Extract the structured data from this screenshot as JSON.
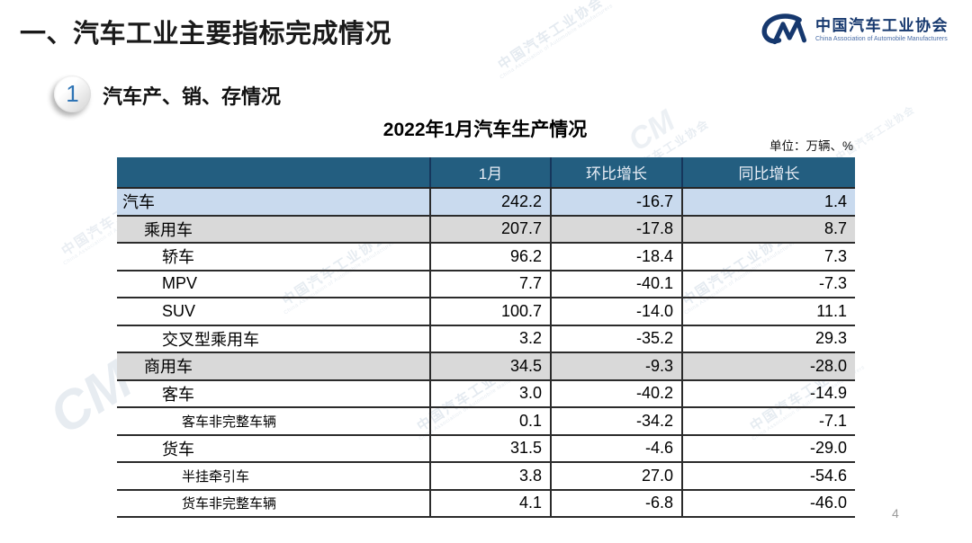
{
  "slide": {
    "header": {
      "title": "一、汽车工业主要指标完成情况"
    },
    "logo": {
      "monogram": "CM",
      "name_cn": "中国汽车工业协会",
      "name_en": "China Association of Automobile Manufacturers"
    },
    "section": {
      "number": "1",
      "title": "汽车产、销、存情况"
    },
    "table": {
      "title": "2022年1月汽车生产情况",
      "unit": "单位：万辆、%",
      "columns": [
        "",
        "1月",
        "环比增长",
        "同比增长"
      ],
      "rows": [
        {
          "label": "汽车",
          "values": [
            "242.2",
            "-16.7",
            "1.4"
          ],
          "level": 0,
          "bg": "blue"
        },
        {
          "label": "乘用车",
          "values": [
            "207.7",
            "-17.8",
            "8.7"
          ],
          "level": 1,
          "bg": "gray"
        },
        {
          "label": "轿车",
          "values": [
            "96.2",
            "-18.4",
            "7.3"
          ],
          "level": 2,
          "bg": "white"
        },
        {
          "label": "MPV",
          "values": [
            "7.7",
            "-40.1",
            "-7.3"
          ],
          "level": 2,
          "bg": "white"
        },
        {
          "label": "SUV",
          "values": [
            "100.7",
            "-14.0",
            "11.1"
          ],
          "level": 2,
          "bg": "white"
        },
        {
          "label": "交叉型乘用车",
          "values": [
            "3.2",
            "-35.2",
            "29.3"
          ],
          "level": 2,
          "bg": "white"
        },
        {
          "label": "商用车",
          "values": [
            "34.5",
            "-9.3",
            "-28.0"
          ],
          "level": 1,
          "bg": "gray"
        },
        {
          "label": "客车",
          "values": [
            "3.0",
            "-40.2",
            "-14.9"
          ],
          "level": 2,
          "bg": "white"
        },
        {
          "label": "客车非完整车辆",
          "values": [
            "0.1",
            "-34.2",
            "-7.1"
          ],
          "level": 3,
          "bg": "white"
        },
        {
          "label": "货车",
          "values": [
            "31.5",
            "-4.6",
            "-29.0"
          ],
          "level": 2,
          "bg": "white"
        },
        {
          "label": "半挂牵引车",
          "values": [
            "3.8",
            "27.0",
            "-54.6"
          ],
          "level": 3,
          "bg": "white"
        },
        {
          "label": "货车非完整车辆",
          "values": [
            "4.1",
            "-6.8",
            "-46.0"
          ],
          "level": 3,
          "bg": "white"
        }
      ]
    },
    "footer": {
      "page_number": "4"
    },
    "watermark": {
      "monogram": "CM",
      "text": "中国汽车工业协会",
      "subtext": "China Association of Automobile Manufacturers"
    },
    "colors": {
      "header_bg": "#235E80",
      "header_divider": "#16365C",
      "row_highlight_blue": "#C9DAEE",
      "row_highlight_gray": "#D9D9D9",
      "border_dark": "#2B2B2B",
      "badge_number_blue": "#2E74B5",
      "logo_navy": "#16386E",
      "title_text": "#1A1A1A",
      "watermark_blue_gray": "#A9BCCF"
    }
  }
}
